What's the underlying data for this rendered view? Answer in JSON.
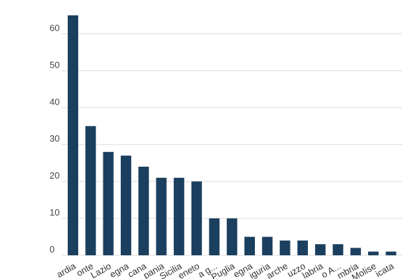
{
  "chart_data": {
    "type": "bar",
    "categories": [
      "Lombardia",
      "Piemonte",
      "Lazio",
      "Sardegna",
      "Toscana",
      "Campania",
      "Sicilia",
      "Veneto",
      "Emilia-Romagna",
      "Puglia",
      "Sardegna",
      "Liguria",
      "Marche",
      "Abruzzo",
      "Calabria",
      "Trentino A...",
      "Umbria",
      "Molise",
      "Basilicata"
    ],
    "visible_labels": [
      "ardia",
      "onte",
      "Lazio",
      "egna",
      "cana",
      "pania",
      "Sicilia",
      "eneto",
      "a g...",
      "Puglia",
      "egna",
      "iguria",
      "arche",
      "uzzo",
      "labria",
      "o A...",
      "mbria",
      "Molise",
      "icata"
    ],
    "values": [
      65,
      35,
      28,
      27,
      24,
      21,
      21,
      20,
      10,
      10,
      5,
      5,
      4,
      4,
      3,
      3,
      2,
      1,
      1
    ],
    "yticks": [
      0,
      10,
      20,
      30,
      40,
      50,
      60
    ],
    "ylim": [
      0,
      65
    ],
    "grid": true,
    "bar_color": "#1b3f5e"
  }
}
